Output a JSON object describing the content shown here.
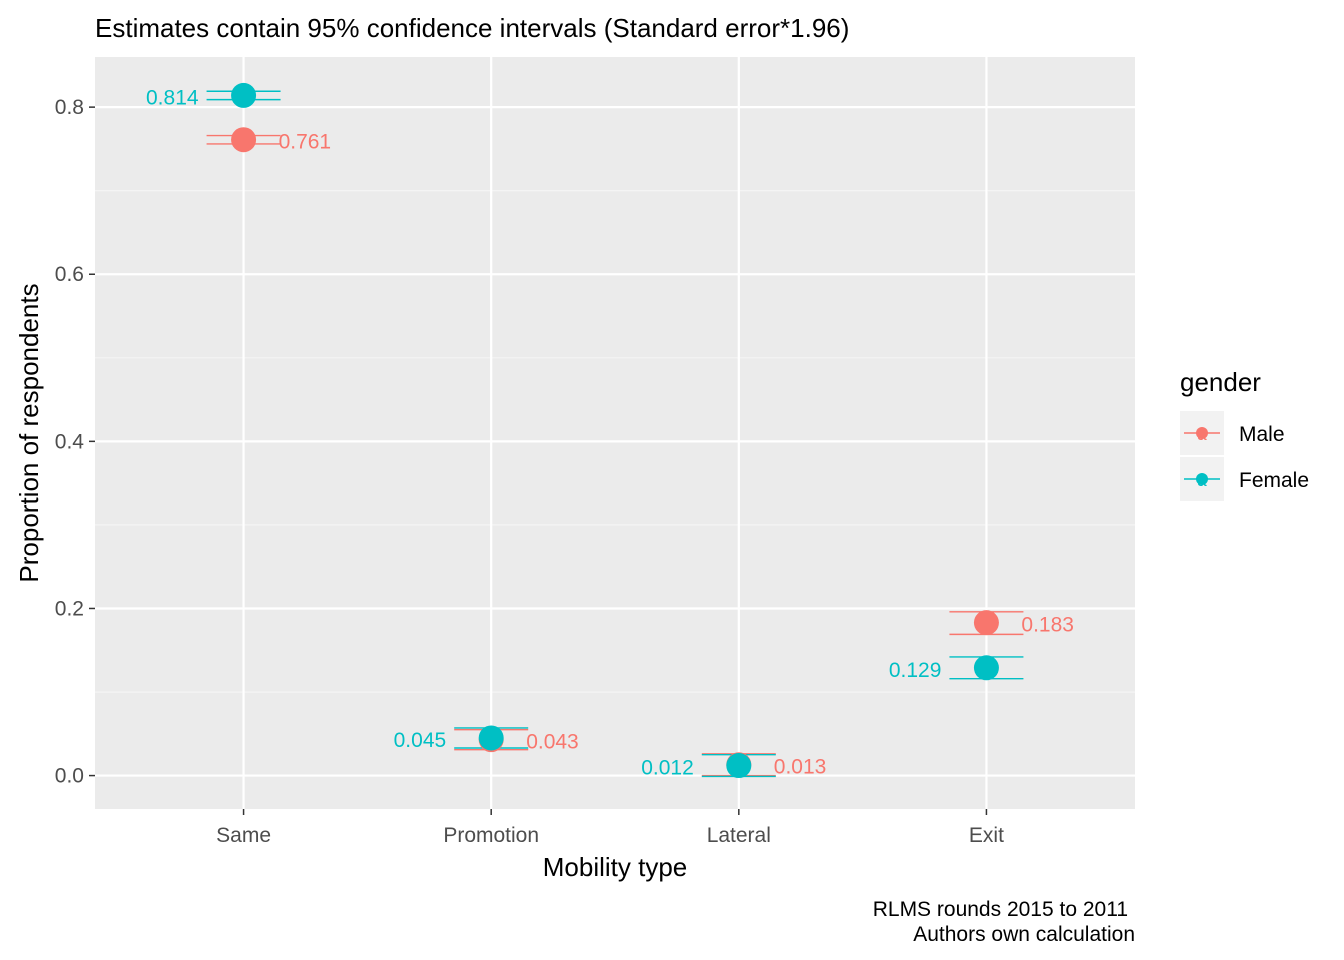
{
  "chart_data": {
    "type": "scatter",
    "title": "Estimates contain 95% confidence intervals (Standard error*1.96)",
    "xlabel": "Mobility type",
    "ylabel": "Proportion of respondents",
    "categories": [
      "Same",
      "Promotion",
      "Lateral",
      "Exit"
    ],
    "ylim": [
      -0.04,
      0.86
    ],
    "yticks": [
      0.0,
      0.2,
      0.4,
      0.6,
      0.8
    ],
    "ytick_labels": [
      "0.0",
      "0.2",
      "0.4",
      "0.6",
      "0.8"
    ],
    "grid": true,
    "caption": [
      "RLMS rounds 2015 to 2011",
      "Authors own calculation"
    ],
    "legend": {
      "title": "gender",
      "position": "right",
      "glyph": "a"
    },
    "series": [
      {
        "name": "Male",
        "color": "#F8766D",
        "values": [
          0.761,
          0.043,
          0.013,
          0.183
        ],
        "labels": [
          "0.761",
          "0.043",
          "0.013",
          "0.183"
        ],
        "ci_low": [
          0.756,
          0.031,
          0.0,
          0.169
        ],
        "ci_high": [
          0.766,
          0.055,
          0.026,
          0.196
        ],
        "label_side": "right"
      },
      {
        "name": "Female",
        "color": "#00BFC4",
        "values": [
          0.814,
          0.045,
          0.012,
          0.129
        ],
        "labels": [
          "0.814",
          "0.045",
          "0.012",
          "0.129"
        ],
        "ci_low": [
          0.809,
          0.033,
          -0.001,
          0.116
        ],
        "ci_high": [
          0.819,
          0.057,
          0.025,
          0.142
        ],
        "label_side": "left"
      }
    ]
  }
}
